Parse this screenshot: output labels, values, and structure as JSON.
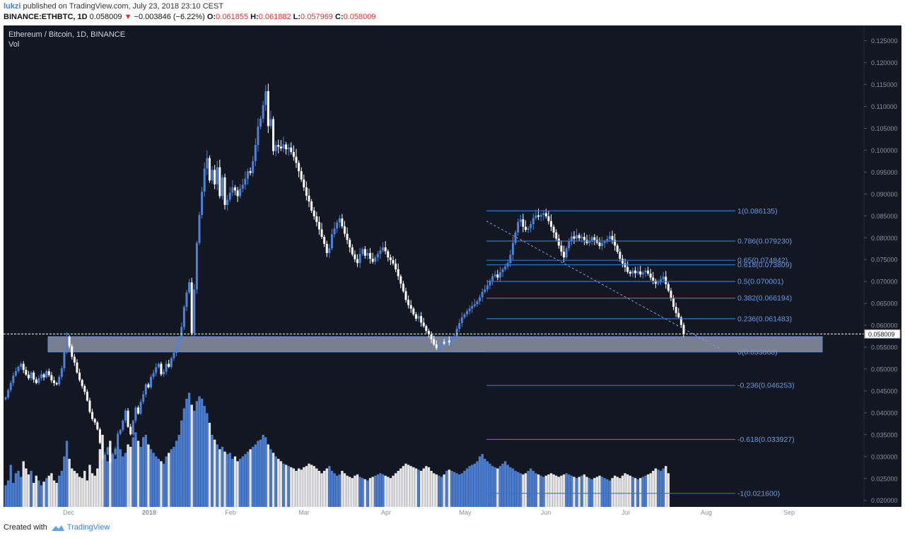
{
  "header": {
    "author": "lukzi",
    "published_text": "published on TradingView.com, July 23, 2018 23:10 CEST",
    "symbol_line": "BINANCE:ETHBTC, 1D",
    "last": "0.058009",
    "arrow": "▼",
    "change": "−0.003846 (−6.22%)",
    "o_label": "O:",
    "o_value": "0.061855",
    "h_label": "H:",
    "h_value": "0.061882",
    "l_label": "L:",
    "l_value": "0.057969",
    "c_label": "C:",
    "c_value": "0.058009"
  },
  "legend": {
    "title": "Ethereum / Bitcoin, 1D, BINANCE",
    "indicator": "Vol"
  },
  "footer": {
    "created_with": "Created with",
    "brand": "TradingView"
  },
  "colors": {
    "background": "#131722",
    "up": "#4d82d8",
    "down": "#ffffff",
    "fib": "#3f6fc4",
    "fib_text": "#6b98e2",
    "zone_fill": "#9aa3b6",
    "axis_text": "#8a8f9c"
  },
  "chart_data": {
    "type": "candlestick",
    "title": "Ethereum / Bitcoin, 1D, BINANCE",
    "x_axis_labels": [
      "Dec",
      "2018",
      "Feb",
      "Mar",
      "Apr",
      "May",
      "Jun",
      "Jul",
      "Aug",
      "Sep"
    ],
    "y_ticks": [
      "0.125000",
      "0.120000",
      "0.115000",
      "0.110000",
      "0.105000",
      "0.100000",
      "0.095000",
      "0.090000",
      "0.085000",
      "0.080000",
      "0.075000",
      "0.070000",
      "0.065000",
      "0.060000",
      "0.055000",
      "0.050000",
      "0.045000",
      "0.040000",
      "0.035000",
      "0.030000",
      "0.025000",
      "0.020000"
    ],
    "ylim": [
      0.0185,
      0.1285
    ],
    "current_price": "0.058009",
    "fib_levels": [
      {
        "label": "1(0.086135)",
        "value": 0.086135
      },
      {
        "label": "0.786(0.079230)",
        "value": 0.07923
      },
      {
        "label": "0.65(0.074842)",
        "value": 0.074842
      },
      {
        "label": "0.618(0.073809)",
        "value": 0.073809
      },
      {
        "label": "0.5(0.070001)",
        "value": 0.070001
      },
      {
        "label": "0.382(0.066194)",
        "value": 0.066194
      },
      {
        "label": "0.236(0.061483)",
        "value": 0.061483
      },
      {
        "label": "0(0.053868)",
        "value": 0.053868
      },
      {
        "label": "-0.236(0.046253)",
        "value": 0.046253
      },
      {
        "label": "-0.618(0.033927)",
        "value": 0.033927
      },
      {
        "label": "-1(0.021600)",
        "value": 0.0216
      }
    ],
    "support_zone": [
      0.0539,
      0.0574
    ],
    "trendline": [
      [
        0.0838,
        "2018-05-12"
      ],
      [
        0.0545,
        "2018-08-05"
      ]
    ],
    "close_series": [
      0.0435,
      0.0452,
      0.0468,
      0.0485,
      0.0495,
      0.0505,
      0.0512,
      0.0498,
      0.0487,
      0.0479,
      0.0492,
      0.0476,
      0.0468,
      0.0479,
      0.0488,
      0.0481,
      0.0495,
      0.0486,
      0.0474,
      0.0468,
      0.0465,
      0.0482,
      0.0502,
      0.0538,
      0.0574,
      0.0552,
      0.0528,
      0.0515,
      0.0492,
      0.0475,
      0.0461,
      0.0448,
      0.0428,
      0.0402,
      0.0386,
      0.0378,
      0.0362,
      0.0331,
      0.0295,
      0.0305,
      0.0321,
      0.0287,
      0.0305,
      0.0318,
      0.0352,
      0.0361,
      0.0382,
      0.0405,
      0.0368,
      0.0351,
      0.0382,
      0.0412,
      0.0398,
      0.0425,
      0.0442,
      0.0465,
      0.0458,
      0.0482,
      0.0491,
      0.0504,
      0.0512,
      0.0488,
      0.0494,
      0.0512,
      0.0505,
      0.0525,
      0.0537,
      0.0552,
      0.0568,
      0.0596,
      0.0642,
      0.0675,
      0.0698,
      0.0582,
      0.0682,
      0.0788,
      0.0852,
      0.0905,
      0.0958,
      0.0982,
      0.0931,
      0.0955,
      0.0922,
      0.0961,
      0.0895,
      0.0938,
      0.0875,
      0.0887,
      0.0903,
      0.0915,
      0.0908,
      0.0895,
      0.0912,
      0.0921,
      0.0935,
      0.0952,
      0.0948,
      0.0975,
      0.1012,
      0.1054,
      0.1072,
      0.1103,
      0.1135,
      0.1055,
      0.1071,
      0.0998,
      0.1012,
      0.1008,
      0.1004,
      0.1013,
      0.1002,
      0.1006,
      0.0996,
      0.0985,
      0.0971,
      0.0952,
      0.0933,
      0.0915,
      0.0896,
      0.0883,
      0.0862,
      0.0849,
      0.0836,
      0.0819,
      0.0802,
      0.0786,
      0.0765,
      0.0776,
      0.0808,
      0.0821,
      0.0835,
      0.0844,
      0.0826,
      0.0809,
      0.0795,
      0.0778,
      0.0762,
      0.0751,
      0.0742,
      0.0763,
      0.0774,
      0.0759,
      0.0765,
      0.0752,
      0.0745,
      0.0755,
      0.0763,
      0.0771,
      0.0778,
      0.0769,
      0.0755,
      0.0749,
      0.0741,
      0.0728,
      0.0712,
      0.0695,
      0.0678,
      0.0658,
      0.0646,
      0.0638,
      0.0625,
      0.0615,
      0.0621,
      0.0606,
      0.0598,
      0.0587,
      0.0579,
      0.0568,
      0.0556,
      0.0548,
      0.0552,
      0.0562,
      0.0558,
      0.0565,
      0.0561,
      0.0569,
      0.0574,
      0.0592,
      0.0605,
      0.0618,
      0.0625,
      0.0632,
      0.0638,
      0.0644,
      0.0648,
      0.0655,
      0.0664,
      0.0676,
      0.0682,
      0.0691,
      0.0702,
      0.0712,
      0.0716,
      0.0709,
      0.0721,
      0.0728,
      0.0734,
      0.0742,
      0.0761,
      0.0788,
      0.0812,
      0.0836,
      0.0842,
      0.0825,
      0.0818,
      0.0822,
      0.0831,
      0.0845,
      0.0851,
      0.0848,
      0.0852,
      0.0856,
      0.0849,
      0.0838,
      0.0825,
      0.0812,
      0.0798,
      0.0782,
      0.0768,
      0.0755,
      0.0776,
      0.0792,
      0.0803,
      0.0798,
      0.0806,
      0.0799,
      0.0802,
      0.0795,
      0.0788,
      0.0793,
      0.0801,
      0.0795,
      0.0789,
      0.0781,
      0.0788,
      0.0791,
      0.0797,
      0.0804,
      0.0795,
      0.0782,
      0.0768,
      0.0752,
      0.0741,
      0.0733,
      0.0722,
      0.0718,
      0.0725,
      0.0719,
      0.0723,
      0.0716,
      0.0721,
      0.0725,
      0.0718,
      0.0709,
      0.0702,
      0.0695,
      0.0698,
      0.0705,
      0.0711,
      0.0694,
      0.0679,
      0.0661,
      0.0642,
      0.0628,
      0.0618,
      0.0601,
      0.058
    ],
    "volume_series": [
      0.18,
      0.22,
      0.35,
      0.2,
      0.28,
      0.3,
      0.25,
      0.38,
      0.32,
      0.27,
      0.3,
      0.2,
      0.26,
      0.22,
      0.18,
      0.21,
      0.24,
      0.26,
      0.28,
      0.22,
      0.2,
      0.26,
      0.3,
      0.42,
      0.55,
      0.4,
      0.32,
      0.3,
      0.28,
      0.25,
      0.24,
      0.3,
      0.22,
      0.35,
      0.28,
      0.26,
      0.32,
      0.48,
      0.6,
      0.42,
      0.38,
      0.55,
      0.44,
      0.4,
      0.5,
      0.48,
      0.42,
      0.45,
      0.52,
      0.5,
      0.58,
      0.62,
      0.55,
      0.5,
      0.58,
      0.6,
      0.52,
      0.48,
      0.45,
      0.42,
      0.4,
      0.38,
      0.36,
      0.42,
      0.45,
      0.48,
      0.5,
      0.55,
      0.6,
      0.72,
      0.82,
      0.9,
      0.95,
      0.85,
      0.8,
      0.88,
      0.92,
      0.9,
      0.84,
      0.78,
      0.7,
      0.6,
      0.56,
      0.52,
      0.48,
      0.5,
      0.46,
      0.44,
      0.45,
      0.4,
      0.42,
      0.38,
      0.4,
      0.42,
      0.44,
      0.46,
      0.48,
      0.5,
      0.52,
      0.55,
      0.56,
      0.6,
      0.58,
      0.52,
      0.48,
      0.45,
      0.42,
      0.4,
      0.38,
      0.36,
      0.35,
      0.34,
      0.33,
      0.32,
      0.3,
      0.32,
      0.31,
      0.33,
      0.34,
      0.36,
      0.35,
      0.34,
      0.32,
      0.3,
      0.28,
      0.3,
      0.32,
      0.34,
      0.3,
      0.28,
      0.26,
      0.27,
      0.3,
      0.28,
      0.26,
      0.25,
      0.24,
      0.26,
      0.27,
      0.25,
      0.24,
      0.23,
      0.22,
      0.24,
      0.25,
      0.26,
      0.27,
      0.28,
      0.27,
      0.26,
      0.25,
      0.24,
      0.26,
      0.28,
      0.3,
      0.32,
      0.34,
      0.36,
      0.35,
      0.34,
      0.33,
      0.32,
      0.31,
      0.3,
      0.32,
      0.34,
      0.33,
      0.3,
      0.28,
      0.27,
      0.26,
      0.25,
      0.27,
      0.3,
      0.31,
      0.3,
      0.29,
      0.28,
      0.27,
      0.28,
      0.3,
      0.32,
      0.34,
      0.35,
      0.36,
      0.38,
      0.42,
      0.44,
      0.4,
      0.38,
      0.36,
      0.34,
      0.33,
      0.32,
      0.34,
      0.36,
      0.38,
      0.35,
      0.33,
      0.32,
      0.3,
      0.29,
      0.28,
      0.27,
      0.28,
      0.3,
      0.32,
      0.3,
      0.28,
      0.27,
      0.26,
      0.25,
      0.26,
      0.27,
      0.28,
      0.27,
      0.26,
      0.25,
      0.26,
      0.27,
      0.28,
      0.27,
      0.26,
      0.25,
      0.24,
      0.25,
      0.26,
      0.27,
      0.25,
      0.24,
      0.23,
      0.24,
      0.25,
      0.26,
      0.25,
      0.24,
      0.23,
      0.22,
      0.24,
      0.26,
      0.25,
      0.24,
      0.26,
      0.28,
      0.27,
      0.26,
      0.25,
      0.24,
      0.23,
      0.24,
      0.25,
      0.26,
      0.27,
      0.28,
      0.3,
      0.32,
      0.31,
      0.3,
      0.32,
      0.34,
      0.28
    ]
  }
}
